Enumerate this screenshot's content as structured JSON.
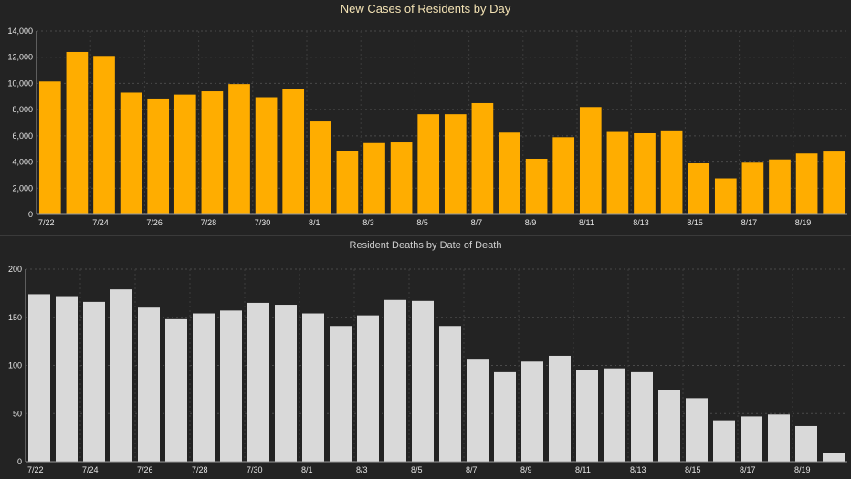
{
  "chart_data": [
    {
      "type": "bar",
      "title": "New Cases of Residents by Day",
      "bar_color": "#ffad00",
      "categories": [
        "7/22",
        "7/23",
        "7/24",
        "7/25",
        "7/26",
        "7/27",
        "7/28",
        "7/29",
        "7/30",
        "7/31",
        "8/1",
        "8/2",
        "8/3",
        "8/4",
        "8/5",
        "8/6",
        "8/7",
        "8/8",
        "8/9",
        "8/10",
        "8/11",
        "8/12",
        "8/13",
        "8/14",
        "8/15",
        "8/16",
        "8/17",
        "8/18",
        "8/19",
        "8/20"
      ],
      "values": [
        10150,
        12400,
        12100,
        9300,
        8850,
        9150,
        9400,
        9950,
        8950,
        9600,
        7100,
        4850,
        5450,
        5500,
        7650,
        7650,
        8500,
        6250,
        4250,
        5900,
        8200,
        6300,
        6200,
        6350,
        3900,
        2750,
        3950,
        4200,
        4650,
        4800
      ],
      "x_tick_labels": [
        "7/22",
        "7/24",
        "7/26",
        "7/28",
        "7/30",
        "8/1",
        "8/3",
        "8/5",
        "8/7",
        "8/9",
        "8/11",
        "8/13",
        "8/15",
        "8/17",
        "8/19"
      ],
      "y_tick_labels": [
        "0",
        "2,000",
        "4,000",
        "6,000",
        "8,000",
        "10,000",
        "12,000",
        "14,000"
      ],
      "ylim": [
        0,
        14000
      ],
      "grid": true
    },
    {
      "type": "bar",
      "title": "Resident Deaths by Date of Death",
      "bar_color": "#d9d9d9",
      "categories": [
        "7/22",
        "7/23",
        "7/24",
        "7/25",
        "7/26",
        "7/27",
        "7/28",
        "7/29",
        "7/30",
        "7/31",
        "8/1",
        "8/2",
        "8/3",
        "8/4",
        "8/5",
        "8/6",
        "8/7",
        "8/8",
        "8/9",
        "8/10",
        "8/11",
        "8/12",
        "8/13",
        "8/14",
        "8/15",
        "8/16",
        "8/17",
        "8/18",
        "8/19",
        "8/20"
      ],
      "values": [
        174,
        172,
        166,
        179,
        160,
        148,
        154,
        157,
        165,
        163,
        154,
        141,
        152,
        168,
        167,
        141,
        106,
        93,
        104,
        110,
        95,
        97,
        93,
        74,
        66,
        43,
        47,
        49,
        37,
        9
      ],
      "x_tick_labels": [
        "7/22",
        "7/24",
        "7/26",
        "7/28",
        "7/30",
        "8/1",
        "8/3",
        "8/5",
        "8/7",
        "8/9",
        "8/11",
        "8/13",
        "8/15",
        "8/17",
        "8/19"
      ],
      "y_tick_labels": [
        "0",
        "50",
        "100",
        "150",
        "200"
      ],
      "ylim": [
        0,
        200
      ],
      "grid": true
    }
  ]
}
